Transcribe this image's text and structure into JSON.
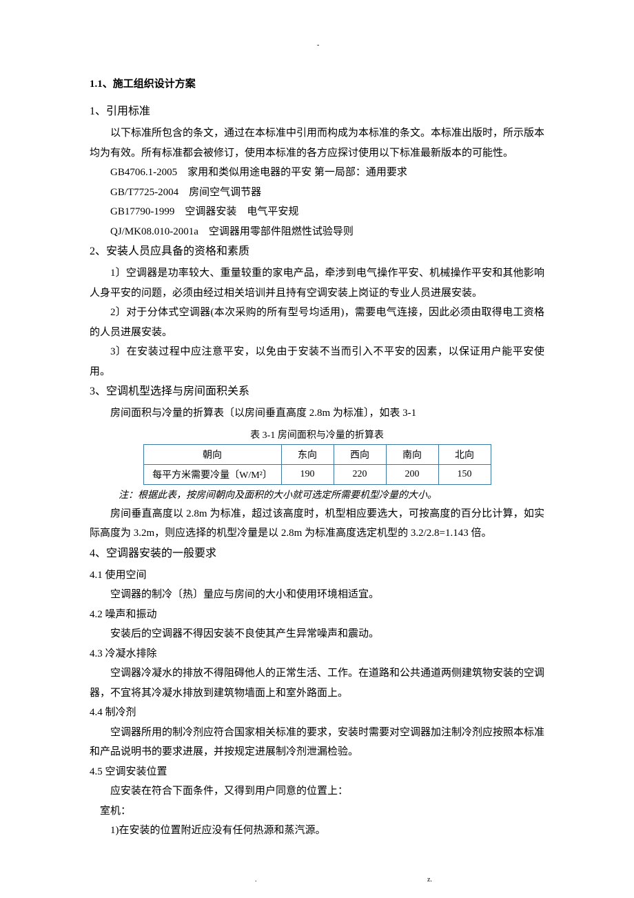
{
  "topDash": "-",
  "footer": {
    "dot": ".",
    "z": "z."
  },
  "heading": "1.1、施工组织设计方案",
  "s1": {
    "title": "1、引用标准",
    "p1": "以下标准所包含的条文，通过在本标准中引用而构成为本标准的条文。本标准出版时，所示版本均为有效。所有标准都会被修订，使用本标准的各方应探讨使用以下标准最新版本的可能性。",
    "std1": "GB4706.1-2005　家用和类似用途电器的平安 第一局部：通用要求",
    "std2": "GB/T7725-2004　房间空气调节器",
    "std3": "GB17790-1999　空调器安装　电气平安规",
    "std4": "QJ/MK08.010-2001a　空调器用零部件阻燃性试验导则"
  },
  "s2": {
    "title": "2、安装人员应具备的资格和素质",
    "p1": "1〕空调器是功率较大、重量较重的家电产品，牵涉到电气操作平安、机械操作平安和其他影响人身平安的问题，必须由经过相关培训并且持有空调安装上岗证的专业人员进展安装。",
    "p2": "2〕对于分体式空调器(本次采购的所有型号均适用)，需要电气连接，因此必须由取得电工资格的人员进展安装。",
    "p3": "3〕在安装过程中应注意平安，以免由于安装不当而引入不平安的因素，以保证用户能平安使用。"
  },
  "s3": {
    "title": "3、空调机型选择与房间面积关系",
    "p1": "房间面积与冷量的折算表〔以房间垂直高度 2.8m 为标准〕，如表 3-1",
    "caption": "表 3-1 房间面积与冷量的折算表",
    "table": {
      "headers": [
        "朝向",
        "东向",
        "西向",
        "南向",
        "北向"
      ],
      "rowLabel": "每平方米需要冷量〔W/M²〕",
      "values": [
        "190",
        "220",
        "200",
        "150"
      ]
    },
    "note": "注：根据此表，按房间朝向及面积的大小就可选定所需要机型冷量的大小。",
    "p2": "房间垂直高度以 2.8m 为标准，超过该高度时，机型相应要选大，可按高度的百分比计算，如实际高度为 3.2m，则应选择的机型冷量是以 2.8m 为标准高度选定机型的 3.2/2.8=1.143 倍。"
  },
  "s4": {
    "title": "4、空调器安装的一般要求",
    "sub1": {
      "title": "4.1 使用空间",
      "p": "空调器的制冷〔热〕量应与房间的大小和使用环境相适宜。"
    },
    "sub2": {
      "title": "4.2 噪声和振动",
      "p": "安装后的空调器不得因安装不良使其产生异常噪声和震动。"
    },
    "sub3": {
      "title": "4.3 冷凝水排除",
      "p": "空调器冷凝水的排放不得阻碍他人的正常生活、工作。在道路和公共通道两侧建筑物安装的空调器，不宜将其冷凝水排放到建筑物墙面上和室外路面上。"
    },
    "sub4": {
      "title": "4.4 制冷剂",
      "p": "空调器所用的制冷剂应符合国家相关标准的要求，安装时需要对空调器加注制冷剂应按照本标准和产品说明书的要求进展，并按规定进展制冷剂泄漏检验。"
    },
    "sub5": {
      "title": "4.5 空调安装位置",
      "p1": "应安装在符合下面条件，又得到用户同意的位置上：",
      "p2": "室机：",
      "p3": "1)在安装的位置附近应没有任何热源和蒸汽源。"
    }
  }
}
